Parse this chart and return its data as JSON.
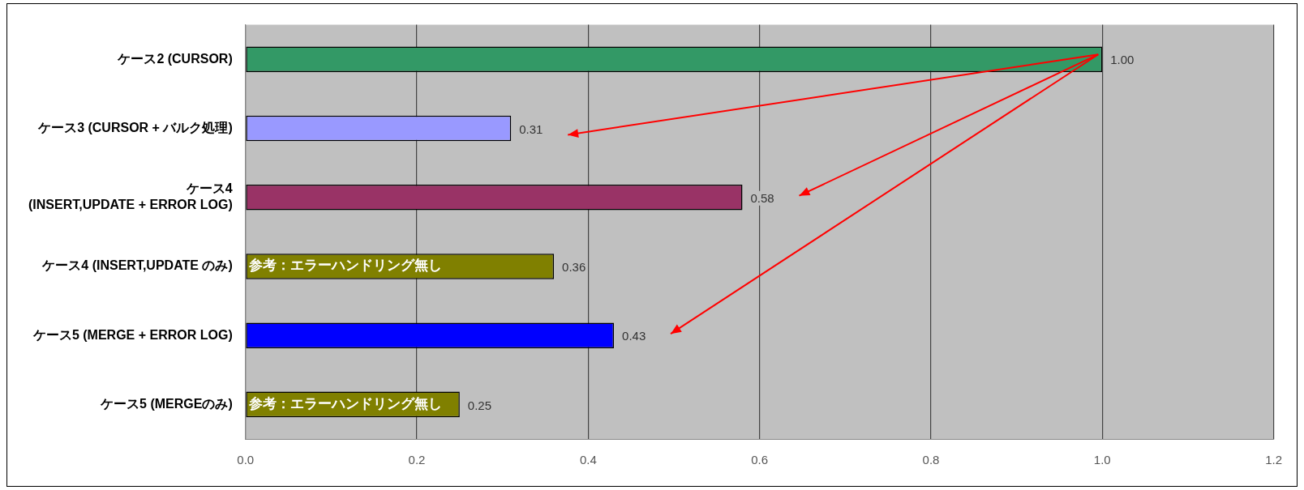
{
  "chart_data": {
    "type": "bar",
    "orientation": "horizontal",
    "categories": [
      "ケース2 (CURSOR)",
      "ケース3 (CURSOR + バルク処理)",
      "ケース4\n(INSERT,UPDATE + ERROR LOG)",
      "ケース4 (INSERT,UPDATE のみ)",
      "ケース5 (MERGE + ERROR LOG)",
      "ケース5 (MERGEのみ)"
    ],
    "values": [
      1.0,
      0.31,
      0.58,
      0.36,
      0.43,
      0.25
    ],
    "colors": [
      "#339966",
      "#9999ff",
      "#993366",
      "#808000",
      "#0000ff",
      "#808000"
    ],
    "value_labels": [
      "1.00",
      "0.31",
      "0.58",
      "0.36",
      "0.43",
      "0.25"
    ],
    "xlim": [
      0,
      1.2
    ],
    "xticks": [
      {
        "value": 0,
        "label": "0.0"
      },
      {
        "value": 0.2,
        "label": "0.2"
      },
      {
        "value": 0.4,
        "label": "0.4"
      },
      {
        "value": 0.6,
        "label": "0.6"
      },
      {
        "value": 0.8,
        "label": "0.8"
      },
      {
        "value": 1.0,
        "label": "1.0"
      },
      {
        "value": 1.2,
        "label": "1.2"
      }
    ],
    "grid": "x",
    "legend": false,
    "annotations": [
      {
        "text": "参考：エラーハンドリング無し",
        "x": 0,
        "y": "ケース4 (INSERT,UPDATE のみ)"
      },
      {
        "text": "参考：エラーハンドリング無し",
        "x": 0,
        "y": "ケース5 (MERGEのみ)"
      }
    ]
  }
}
